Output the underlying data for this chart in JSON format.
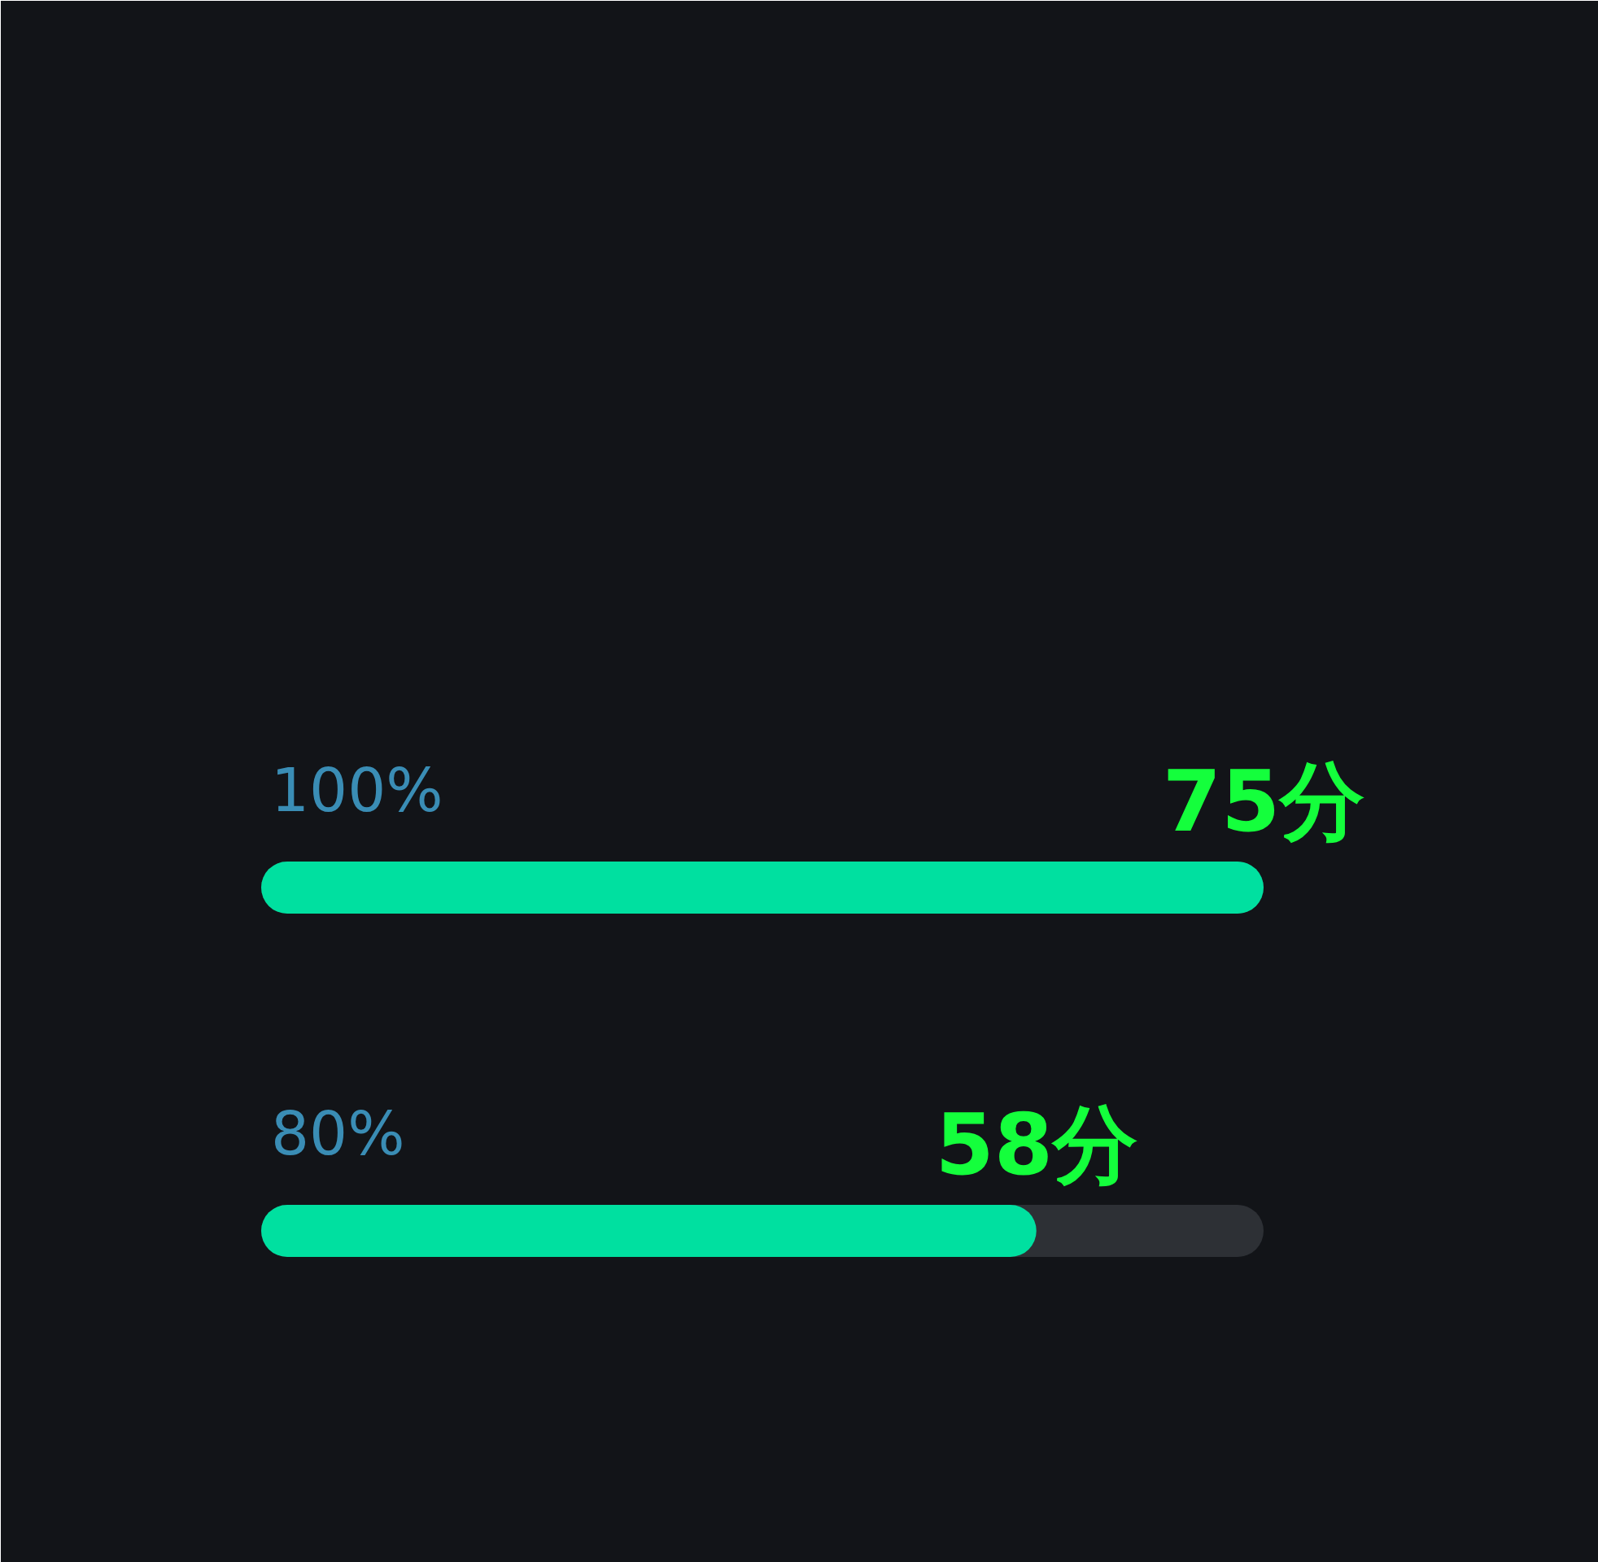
{
  "chart_data": {
    "type": "bar",
    "orientation": "horizontal",
    "categories": [
      "100%",
      "80%"
    ],
    "values": [
      75,
      58
    ],
    "value_labels": [
      "75分",
      "58分"
    ],
    "color": "#00e0a0",
    "tick_labels": false
  }
}
